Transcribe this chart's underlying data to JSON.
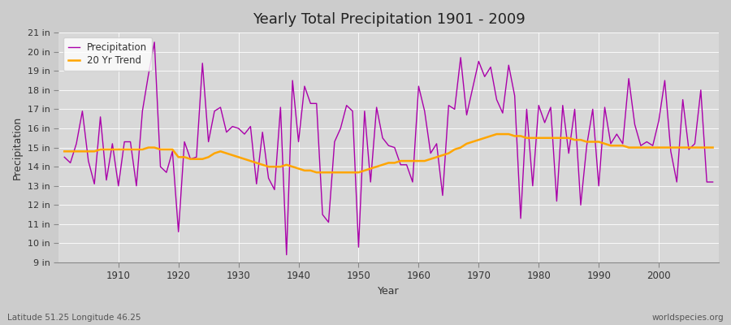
{
  "title": "Yearly Total Precipitation 1901 - 2009",
  "xlabel": "Year",
  "ylabel": "Precipitation",
  "subtitle_left": "Latitude 51.25 Longitude 46.25",
  "watermark": "worldspecies.org",
  "bg_color": "#d8d8d8",
  "plot_bg_color": "#e0e0e0",
  "precip_color": "#aa00aa",
  "trend_color": "#FFA500",
  "ylim": [
    9,
    21
  ],
  "years": [
    1901,
    1902,
    1903,
    1904,
    1905,
    1906,
    1907,
    1908,
    1909,
    1910,
    1911,
    1912,
    1913,
    1914,
    1915,
    1916,
    1917,
    1918,
    1919,
    1920,
    1921,
    1922,
    1923,
    1924,
    1925,
    1926,
    1927,
    1928,
    1929,
    1930,
    1931,
    1932,
    1933,
    1934,
    1935,
    1936,
    1937,
    1938,
    1939,
    1940,
    1941,
    1942,
    1943,
    1944,
    1945,
    1946,
    1947,
    1948,
    1949,
    1950,
    1951,
    1952,
    1953,
    1954,
    1955,
    1956,
    1957,
    1958,
    1959,
    1960,
    1961,
    1962,
    1963,
    1964,
    1965,
    1966,
    1967,
    1968,
    1969,
    1970,
    1971,
    1972,
    1973,
    1974,
    1975,
    1976,
    1977,
    1978,
    1979,
    1980,
    1981,
    1982,
    1983,
    1984,
    1985,
    1986,
    1987,
    1988,
    1989,
    1990,
    1991,
    1992,
    1993,
    1994,
    1995,
    1996,
    1997,
    1998,
    1999,
    2000,
    2001,
    2002,
    2003,
    2004,
    2005,
    2006,
    2007,
    2008,
    2009
  ],
  "precip": [
    14.5,
    14.2,
    15.2,
    16.9,
    14.3,
    13.1,
    16.6,
    13.3,
    15.2,
    13.0,
    15.3,
    15.3,
    13.0,
    16.9,
    18.8,
    20.5,
    14.0,
    13.7,
    14.8,
    10.6,
    15.3,
    14.4,
    14.5,
    19.4,
    15.3,
    16.9,
    17.1,
    15.8,
    16.1,
    16.0,
    15.7,
    16.1,
    13.1,
    15.8,
    13.4,
    12.8,
    17.1,
    9.4,
    18.5,
    15.3,
    18.2,
    17.3,
    17.3,
    11.5,
    11.1,
    15.3,
    16.0,
    17.2,
    16.9,
    9.8,
    16.9,
    13.2,
    17.1,
    15.5,
    15.1,
    15.0,
    14.1,
    14.1,
    13.2,
    18.2,
    16.9,
    14.7,
    15.2,
    12.5,
    17.2,
    17.0,
    19.7,
    16.7,
    18.1,
    19.5,
    18.7,
    19.2,
    17.5,
    16.8,
    19.3,
    17.7,
    11.3,
    17.0,
    13.0,
    17.2,
    16.3,
    17.1,
    12.2,
    17.2,
    14.7,
    17.0,
    12.0,
    15.1,
    17.0,
    13.0,
    17.1,
    15.2,
    15.7,
    15.2,
    18.6,
    16.2,
    15.1,
    15.3,
    15.1,
    16.4,
    18.5,
    14.8,
    13.2,
    17.5,
    14.9,
    15.2,
    18.0,
    13.2,
    13.2
  ],
  "trend": [
    14.8,
    14.8,
    14.8,
    14.8,
    14.8,
    14.8,
    14.9,
    14.9,
    14.9,
    14.9,
    14.9,
    14.9,
    14.9,
    14.9,
    15.0,
    15.0,
    14.9,
    14.9,
    14.9,
    14.5,
    14.5,
    14.4,
    14.4,
    14.4,
    14.5,
    14.7,
    14.8,
    14.7,
    14.6,
    14.5,
    14.4,
    14.3,
    14.2,
    14.1,
    14.0,
    14.0,
    14.0,
    14.1,
    14.0,
    13.9,
    13.8,
    13.8,
    13.7,
    13.7,
    13.7,
    13.7,
    13.7,
    13.7,
    13.7,
    13.7,
    13.8,
    13.9,
    14.0,
    14.1,
    14.2,
    14.2,
    14.3,
    14.3,
    14.3,
    14.3,
    14.3,
    14.4,
    14.5,
    14.6,
    14.7,
    14.9,
    15.0,
    15.2,
    15.3,
    15.4,
    15.5,
    15.6,
    15.7,
    15.7,
    15.7,
    15.6,
    15.6,
    15.5,
    15.5,
    15.5,
    15.5,
    15.5,
    15.5,
    15.5,
    15.5,
    15.4,
    15.4,
    15.3,
    15.3,
    15.3,
    15.2,
    15.1,
    15.1,
    15.1,
    15.0,
    15.0,
    15.0,
    15.0,
    15.0,
    15.0,
    15.0,
    15.0,
    15.0,
    15.0,
    15.0,
    15.0,
    15.0,
    15.0,
    15.0
  ]
}
